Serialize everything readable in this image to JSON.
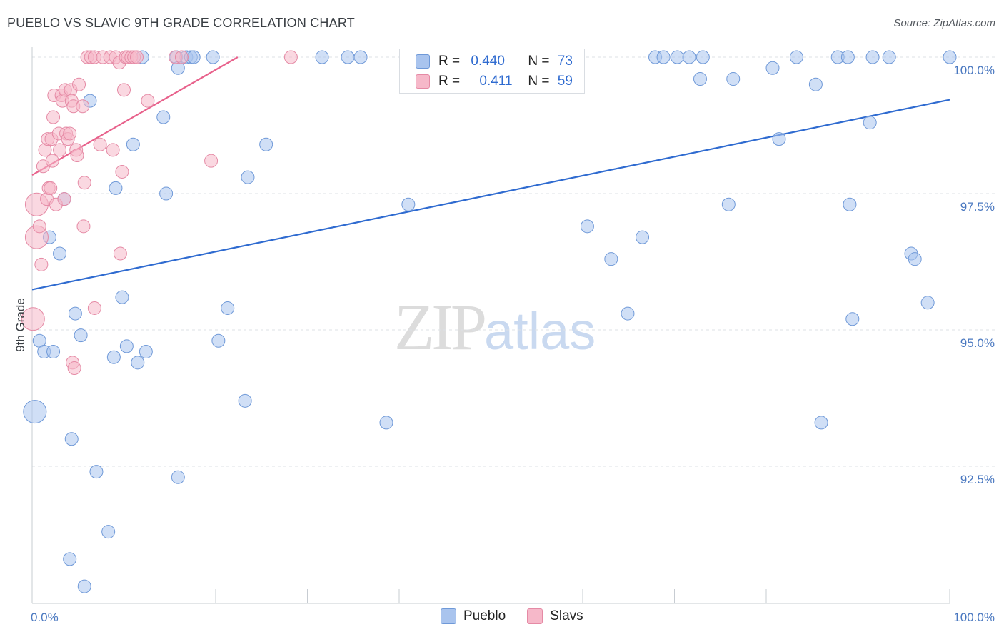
{
  "title": "PUEBLO VS SLAVIC 9TH GRADE CORRELATION CHART",
  "source": "Source: ZipAtlas.com",
  "watermark": {
    "zip": "ZIP",
    "atlas": "atlas"
  },
  "legend": {
    "rows": [
      {
        "r_label": "R =",
        "r_value": "0.440",
        "n_label": "N =",
        "n_value": "73",
        "color": "#a9c4ee"
      },
      {
        "r_label": "R =",
        "r_value": "0.411",
        "n_label": "N =",
        "n_value": "59",
        "color": "#f6b8c9"
      }
    ]
  },
  "chart_data": {
    "type": "scatter",
    "title": "PUEBLO VS SLAVIC 9TH GRADE CORRELATION CHART",
    "xlabel": "",
    "ylabel": "9th Grade",
    "xlim": [
      0,
      100
    ],
    "ylim": [
      90.2,
      100.2
    ],
    "x_tick_labels": [
      "0.0%",
      "100.0%"
    ],
    "y_ticks": [
      {
        "value": 92.5,
        "label": "92.5%"
      },
      {
        "value": 95.0,
        "label": "95.0%"
      },
      {
        "value": 97.5,
        "label": "97.5%"
      },
      {
        "value": 100.0,
        "label": "100.0%"
      }
    ],
    "grid": true,
    "legend_position": "bottom-center",
    "series": [
      {
        "name": "Pueblo",
        "color": "#a9c4ee",
        "edge": "#6f99d8",
        "line_color": "#2f6bd0",
        "trend": [
          [
            0,
            95.74
          ],
          [
            100,
            99.22
          ]
        ],
        "points": [
          [
            0.3,
            93.5
          ],
          [
            0.8,
            94.8
          ],
          [
            1.3,
            94.6
          ],
          [
            1.9,
            96.7
          ],
          [
            2.3,
            94.6
          ],
          [
            3.0,
            96.4
          ],
          [
            3.5,
            97.4
          ],
          [
            4.1,
            90.8
          ],
          [
            4.3,
            93.0
          ],
          [
            4.7,
            95.3
          ],
          [
            5.3,
            94.9
          ],
          [
            5.7,
            90.3
          ],
          [
            6.3,
            99.2
          ],
          [
            7.0,
            92.4
          ],
          [
            8.3,
            91.3
          ],
          [
            8.9,
            94.5
          ],
          [
            9.1,
            97.6
          ],
          [
            9.8,
            95.6
          ],
          [
            10.3,
            94.7
          ],
          [
            11.0,
            98.4
          ],
          [
            11.5,
            94.4
          ],
          [
            12.0,
            100.0
          ],
          [
            12.4,
            94.6
          ],
          [
            14.3,
            98.9
          ],
          [
            14.6,
            97.5
          ],
          [
            15.9,
            92.3
          ],
          [
            15.7,
            100.0
          ],
          [
            15.9,
            99.8
          ],
          [
            16.8,
            100.0
          ],
          [
            17.3,
            100.0
          ],
          [
            17.6,
            100.0
          ],
          [
            19.7,
            100.0
          ],
          [
            20.3,
            94.8
          ],
          [
            21.3,
            95.4
          ],
          [
            23.2,
            93.7
          ],
          [
            23.5,
            97.8
          ],
          [
            25.5,
            98.4
          ],
          [
            31.6,
            100.0
          ],
          [
            34.4,
            100.0
          ],
          [
            35.8,
            100.0
          ],
          [
            38.6,
            93.3
          ],
          [
            41.0,
            97.3
          ],
          [
            45.0,
            100.0
          ],
          [
            46.7,
            100.0
          ],
          [
            48.6,
            100.0
          ],
          [
            60.5,
            96.9
          ],
          [
            63.1,
            96.3
          ],
          [
            64.9,
            95.3
          ],
          [
            66.5,
            96.7
          ],
          [
            67.9,
            100.0
          ],
          [
            68.8,
            100.0
          ],
          [
            70.3,
            100.0
          ],
          [
            71.6,
            100.0
          ],
          [
            72.8,
            99.6
          ],
          [
            73.1,
            100.0
          ],
          [
            75.9,
            97.3
          ],
          [
            76.4,
            99.6
          ],
          [
            80.7,
            99.8
          ],
          [
            81.4,
            98.5
          ],
          [
            83.3,
            100.0
          ],
          [
            85.4,
            99.5
          ],
          [
            86.0,
            93.3
          ],
          [
            87.8,
            100.0
          ],
          [
            88.9,
            100.0
          ],
          [
            89.1,
            97.3
          ],
          [
            89.4,
            95.2
          ],
          [
            91.3,
            98.8
          ],
          [
            91.6,
            100.0
          ],
          [
            93.4,
            100.0
          ],
          [
            95.8,
            96.4
          ],
          [
            96.2,
            96.3
          ],
          [
            97.6,
            95.5
          ],
          [
            100.0,
            100.0
          ]
        ]
      },
      {
        "name": "Slavs",
        "color": "#f6b8c9",
        "edge": "#e58aa5",
        "line_color": "#e8628c",
        "trend": [
          [
            0,
            97.84
          ],
          [
            22.4,
            100.0
          ]
        ],
        "points": [
          [
            0.1,
            95.2
          ],
          [
            0.5,
            96.7
          ],
          [
            0.5,
            97.3
          ],
          [
            0.8,
            96.9
          ],
          [
            1.0,
            96.2
          ],
          [
            1.2,
            98.0
          ],
          [
            1.4,
            98.3
          ],
          [
            1.6,
            97.4
          ],
          [
            1.7,
            98.5
          ],
          [
            1.8,
            97.6
          ],
          [
            2.0,
            97.6
          ],
          [
            2.1,
            98.5
          ],
          [
            2.2,
            98.1
          ],
          [
            2.3,
            98.9
          ],
          [
            2.4,
            99.3
          ],
          [
            2.6,
            97.3
          ],
          [
            2.9,
            98.6
          ],
          [
            3.0,
            98.3
          ],
          [
            3.2,
            99.3
          ],
          [
            3.3,
            99.2
          ],
          [
            3.5,
            97.4
          ],
          [
            3.6,
            99.4
          ],
          [
            3.7,
            98.6
          ],
          [
            3.9,
            98.5
          ],
          [
            4.1,
            98.6
          ],
          [
            4.2,
            99.4
          ],
          [
            4.3,
            99.2
          ],
          [
            4.4,
            94.4
          ],
          [
            4.5,
            99.1
          ],
          [
            4.6,
            94.3
          ],
          [
            4.8,
            98.3
          ],
          [
            4.9,
            98.2
          ],
          [
            5.1,
            99.5
          ],
          [
            5.5,
            99.1
          ],
          [
            5.6,
            96.9
          ],
          [
            5.7,
            97.7
          ],
          [
            6.0,
            100.0
          ],
          [
            6.4,
            100.0
          ],
          [
            6.8,
            100.0
          ],
          [
            6.8,
            95.4
          ],
          [
            7.4,
            98.4
          ],
          [
            7.7,
            100.0
          ],
          [
            8.5,
            100.0
          ],
          [
            8.8,
            98.3
          ],
          [
            9.1,
            100.0
          ],
          [
            9.5,
            99.9
          ],
          [
            9.6,
            96.4
          ],
          [
            9.8,
            97.9
          ],
          [
            10.0,
            99.4
          ],
          [
            10.2,
            100.0
          ],
          [
            10.4,
            100.0
          ],
          [
            10.8,
            100.0
          ],
          [
            11.1,
            100.0
          ],
          [
            11.4,
            100.0
          ],
          [
            12.6,
            99.2
          ],
          [
            15.6,
            100.0
          ],
          [
            16.3,
            100.0
          ],
          [
            19.5,
            98.1
          ],
          [
            28.2,
            100.0
          ]
        ]
      }
    ]
  }
}
